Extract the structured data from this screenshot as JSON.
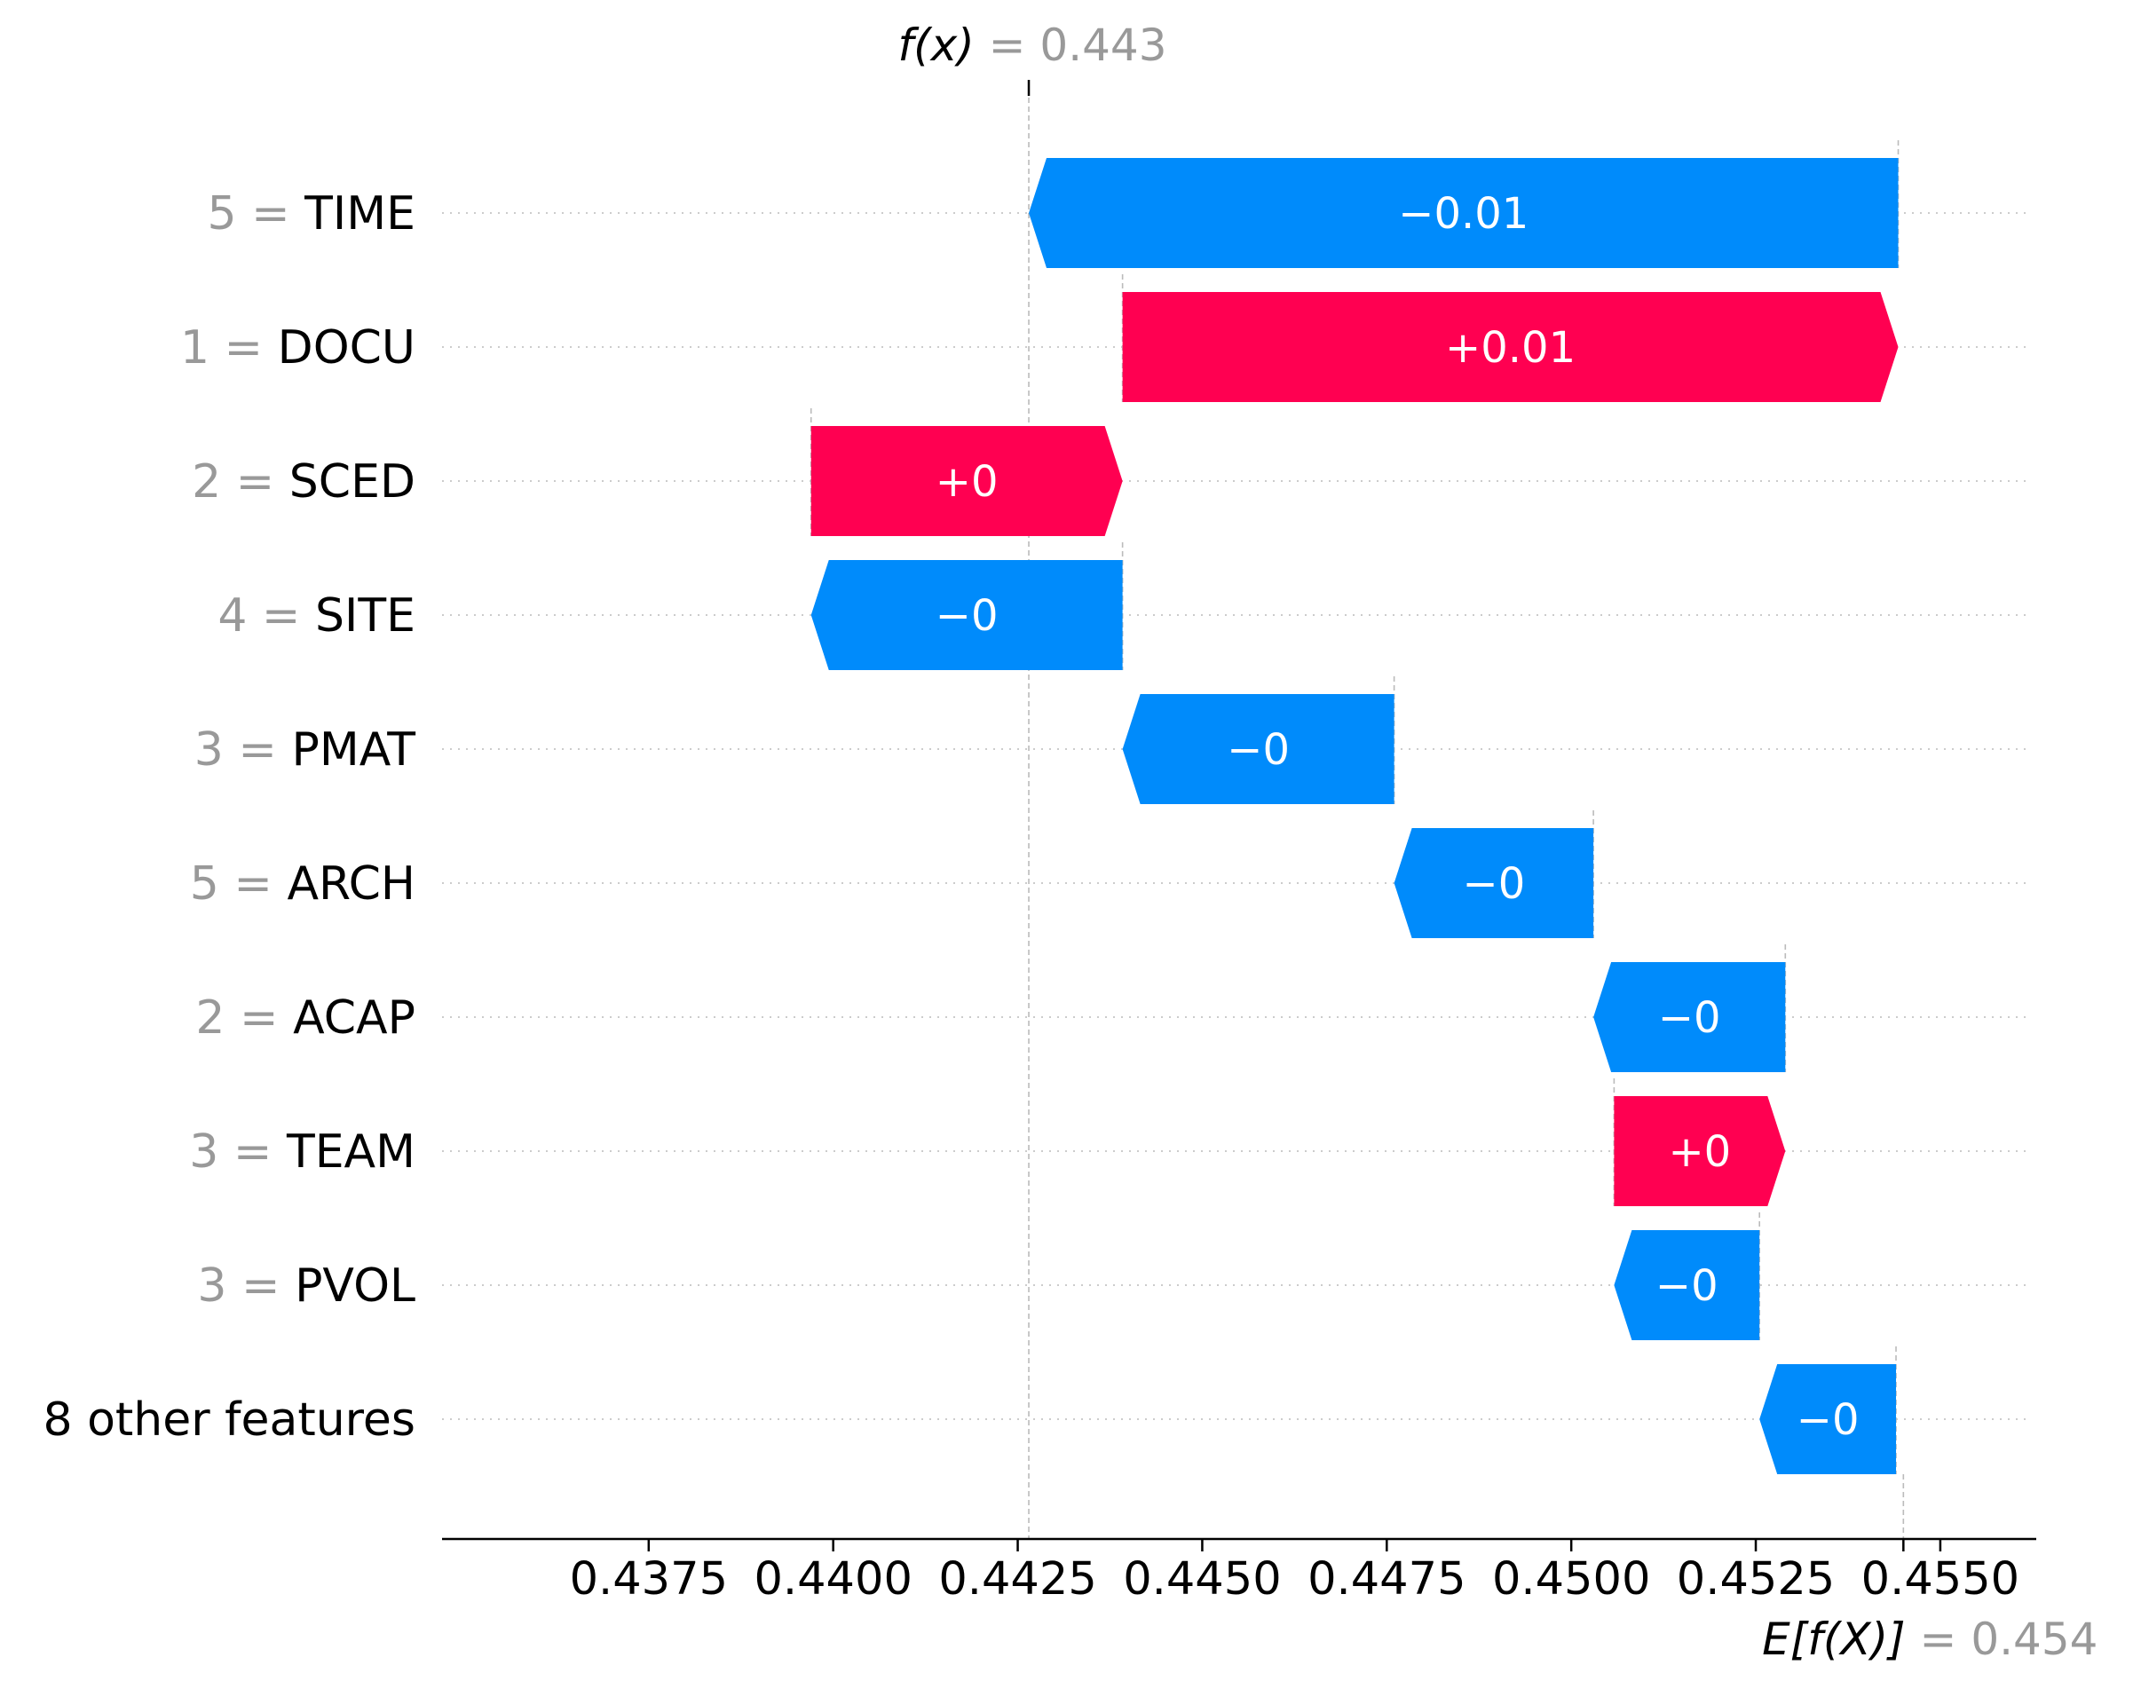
{
  "chart_data": {
    "type": "waterfall",
    "fx_label": "f(x)",
    "fx_value_text": "= 0.443",
    "fx": 0.44265,
    "efx_label": "E[f(X)]",
    "efx_value_text": "= 0.454",
    "efx": 0.4545,
    "xlim": [
      0.4347,
      0.4563
    ],
    "xticks": [
      0.4375,
      0.44,
      0.4425,
      0.445,
      0.4475,
      0.45,
      0.4525,
      0.455
    ],
    "xtick_labels": [
      "0.4375",
      "0.4400",
      "0.4425",
      "0.4450",
      "0.4475",
      "0.4500",
      "0.4525",
      "0.4550"
    ],
    "positive_color": "#ff0051",
    "negative_color": "#008bfb",
    "features": [
      {
        "value": "5",
        "name": "TIME",
        "label": "−0.01",
        "start": 0.45443,
        "end": 0.44265
      },
      {
        "value": "1",
        "name": "DOCU",
        "label": "+0.01",
        "start": 0.44392,
        "end": 0.45443
      },
      {
        "value": "2",
        "name": "SCED",
        "label": "+0",
        "start": 0.4397,
        "end": 0.44392
      },
      {
        "value": "4",
        "name": "SITE",
        "label": "−0",
        "start": 0.44392,
        "end": 0.4397
      },
      {
        "value": "3",
        "name": "PMAT",
        "label": "−0",
        "start": 0.4476,
        "end": 0.44392
      },
      {
        "value": "5",
        "name": "ARCH",
        "label": "−0",
        "start": 0.4503,
        "end": 0.4476
      },
      {
        "value": "2",
        "name": "ACAP",
        "label": "−0",
        "start": 0.4529,
        "end": 0.4503
      },
      {
        "value": "3",
        "name": "TEAM",
        "label": "+0",
        "start": 0.45058,
        "end": 0.4529
      },
      {
        "value": "3",
        "name": "PVOL",
        "label": "−0",
        "start": 0.45255,
        "end": 0.45058
      },
      {
        "value": "",
        "name": "8 other features",
        "label": "−0",
        "start": 0.4544,
        "end": 0.45255
      }
    ]
  }
}
